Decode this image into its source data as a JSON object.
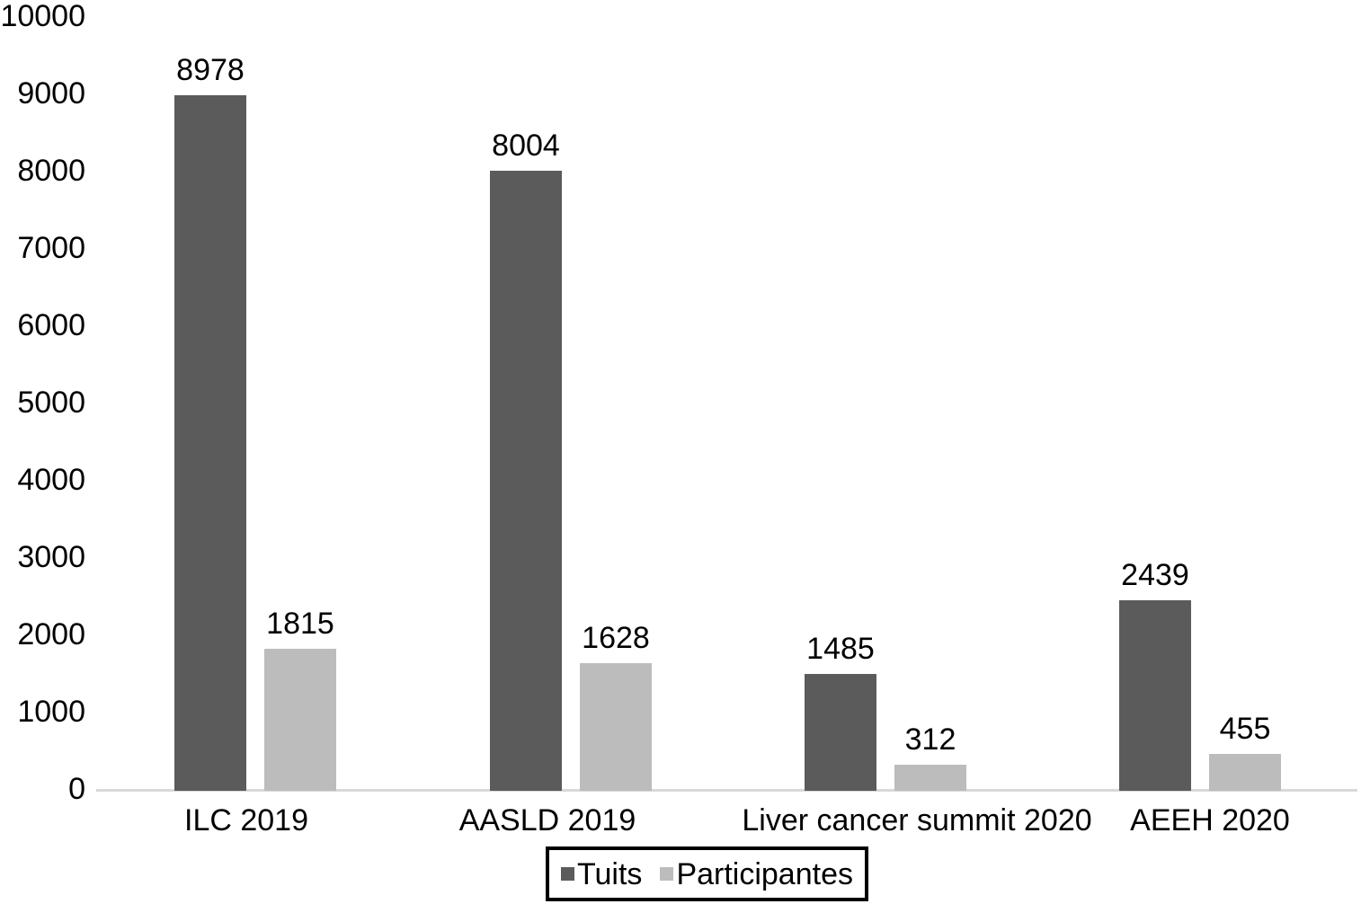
{
  "chart_data": {
    "type": "bar",
    "categories": [
      "ILC 2019",
      "AASLD 2019",
      "Liver cancer summit 2020",
      "AEEH 2020"
    ],
    "series": [
      {
        "name": "Tuits",
        "color": "#5b5b5b",
        "values": [
          8978,
          8004,
          1485,
          2439
        ]
      },
      {
        "name": "Participantes",
        "color": "#bcbcbc",
        "values": [
          1815,
          1628,
          312,
          455
        ]
      }
    ],
    "title": "",
    "xlabel": "",
    "ylabel": "",
    "ylim": [
      0,
      10000
    ],
    "ytick_interval": 1000,
    "yticks": [
      0,
      1000,
      2000,
      3000,
      4000,
      5000,
      6000,
      7000,
      8000,
      9000,
      10000
    ],
    "data_labels": true,
    "grid": false,
    "legend_position": "bottom",
    "legend_border_color": "#000000",
    "axis_line_color": "#d9d9d9",
    "text_color": "#000000",
    "background_color": "#ffffff"
  }
}
